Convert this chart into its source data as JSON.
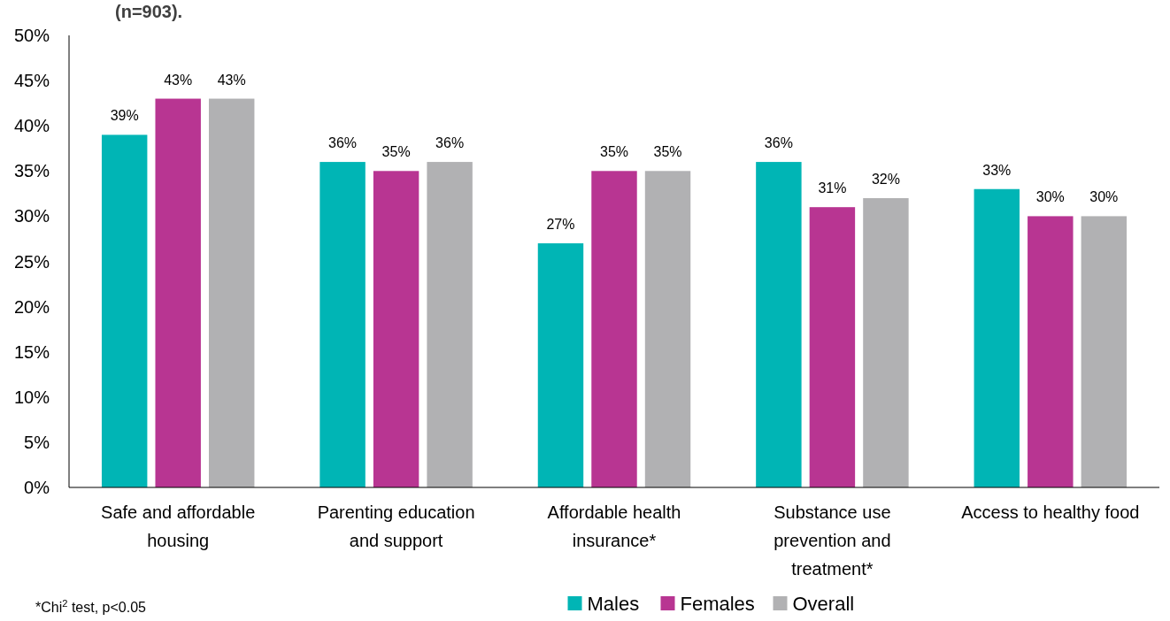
{
  "chart_data": {
    "type": "bar",
    "title": "(n=903).",
    "categories": [
      "Safe and affordable housing",
      "Parenting education and support",
      "Affordable health insurance*",
      "Substance use prevention and treatment*",
      "Access to healthy food"
    ],
    "series": [
      {
        "name": "Males",
        "color": "#00b5b5",
        "values": [
          39,
          36,
          27,
          36,
          33
        ]
      },
      {
        "name": "Females",
        "color": "#b83592",
        "values": [
          43,
          35,
          35,
          31,
          30
        ]
      },
      {
        "name": "Overall",
        "color": "#b1b1b3",
        "values": [
          43,
          36,
          35,
          32,
          30
        ]
      }
    ],
    "ylim": [
      0,
      50
    ],
    "yticks": [
      {
        "value": 0,
        "label": "0%"
      },
      {
        "value": 5,
        "label": "5%"
      },
      {
        "value": 10,
        "label": "10%"
      },
      {
        "value": 15,
        "label": "15%"
      },
      {
        "value": 20,
        "label": "20%"
      },
      {
        "value": 25,
        "label": "25%"
      },
      {
        "value": 30,
        "label": "30%"
      },
      {
        "value": 35,
        "label": "35%"
      },
      {
        "value": 40,
        "label": "40%"
      },
      {
        "value": 45,
        "label": "45%"
      },
      {
        "value": 50,
        "label": "50%"
      }
    ],
    "value_labels": [
      [
        "39%",
        "36%",
        "27%",
        "36%",
        "33%"
      ],
      [
        "43%",
        "35%",
        "35%",
        "31%",
        "30%"
      ],
      [
        "43%",
        "36%",
        "35%",
        "32%",
        "30%"
      ]
    ],
    "legend": "bottom",
    "grid": false,
    "annotations": [
      "*Chi$^{2}$ test, p<0.05"
    ]
  }
}
